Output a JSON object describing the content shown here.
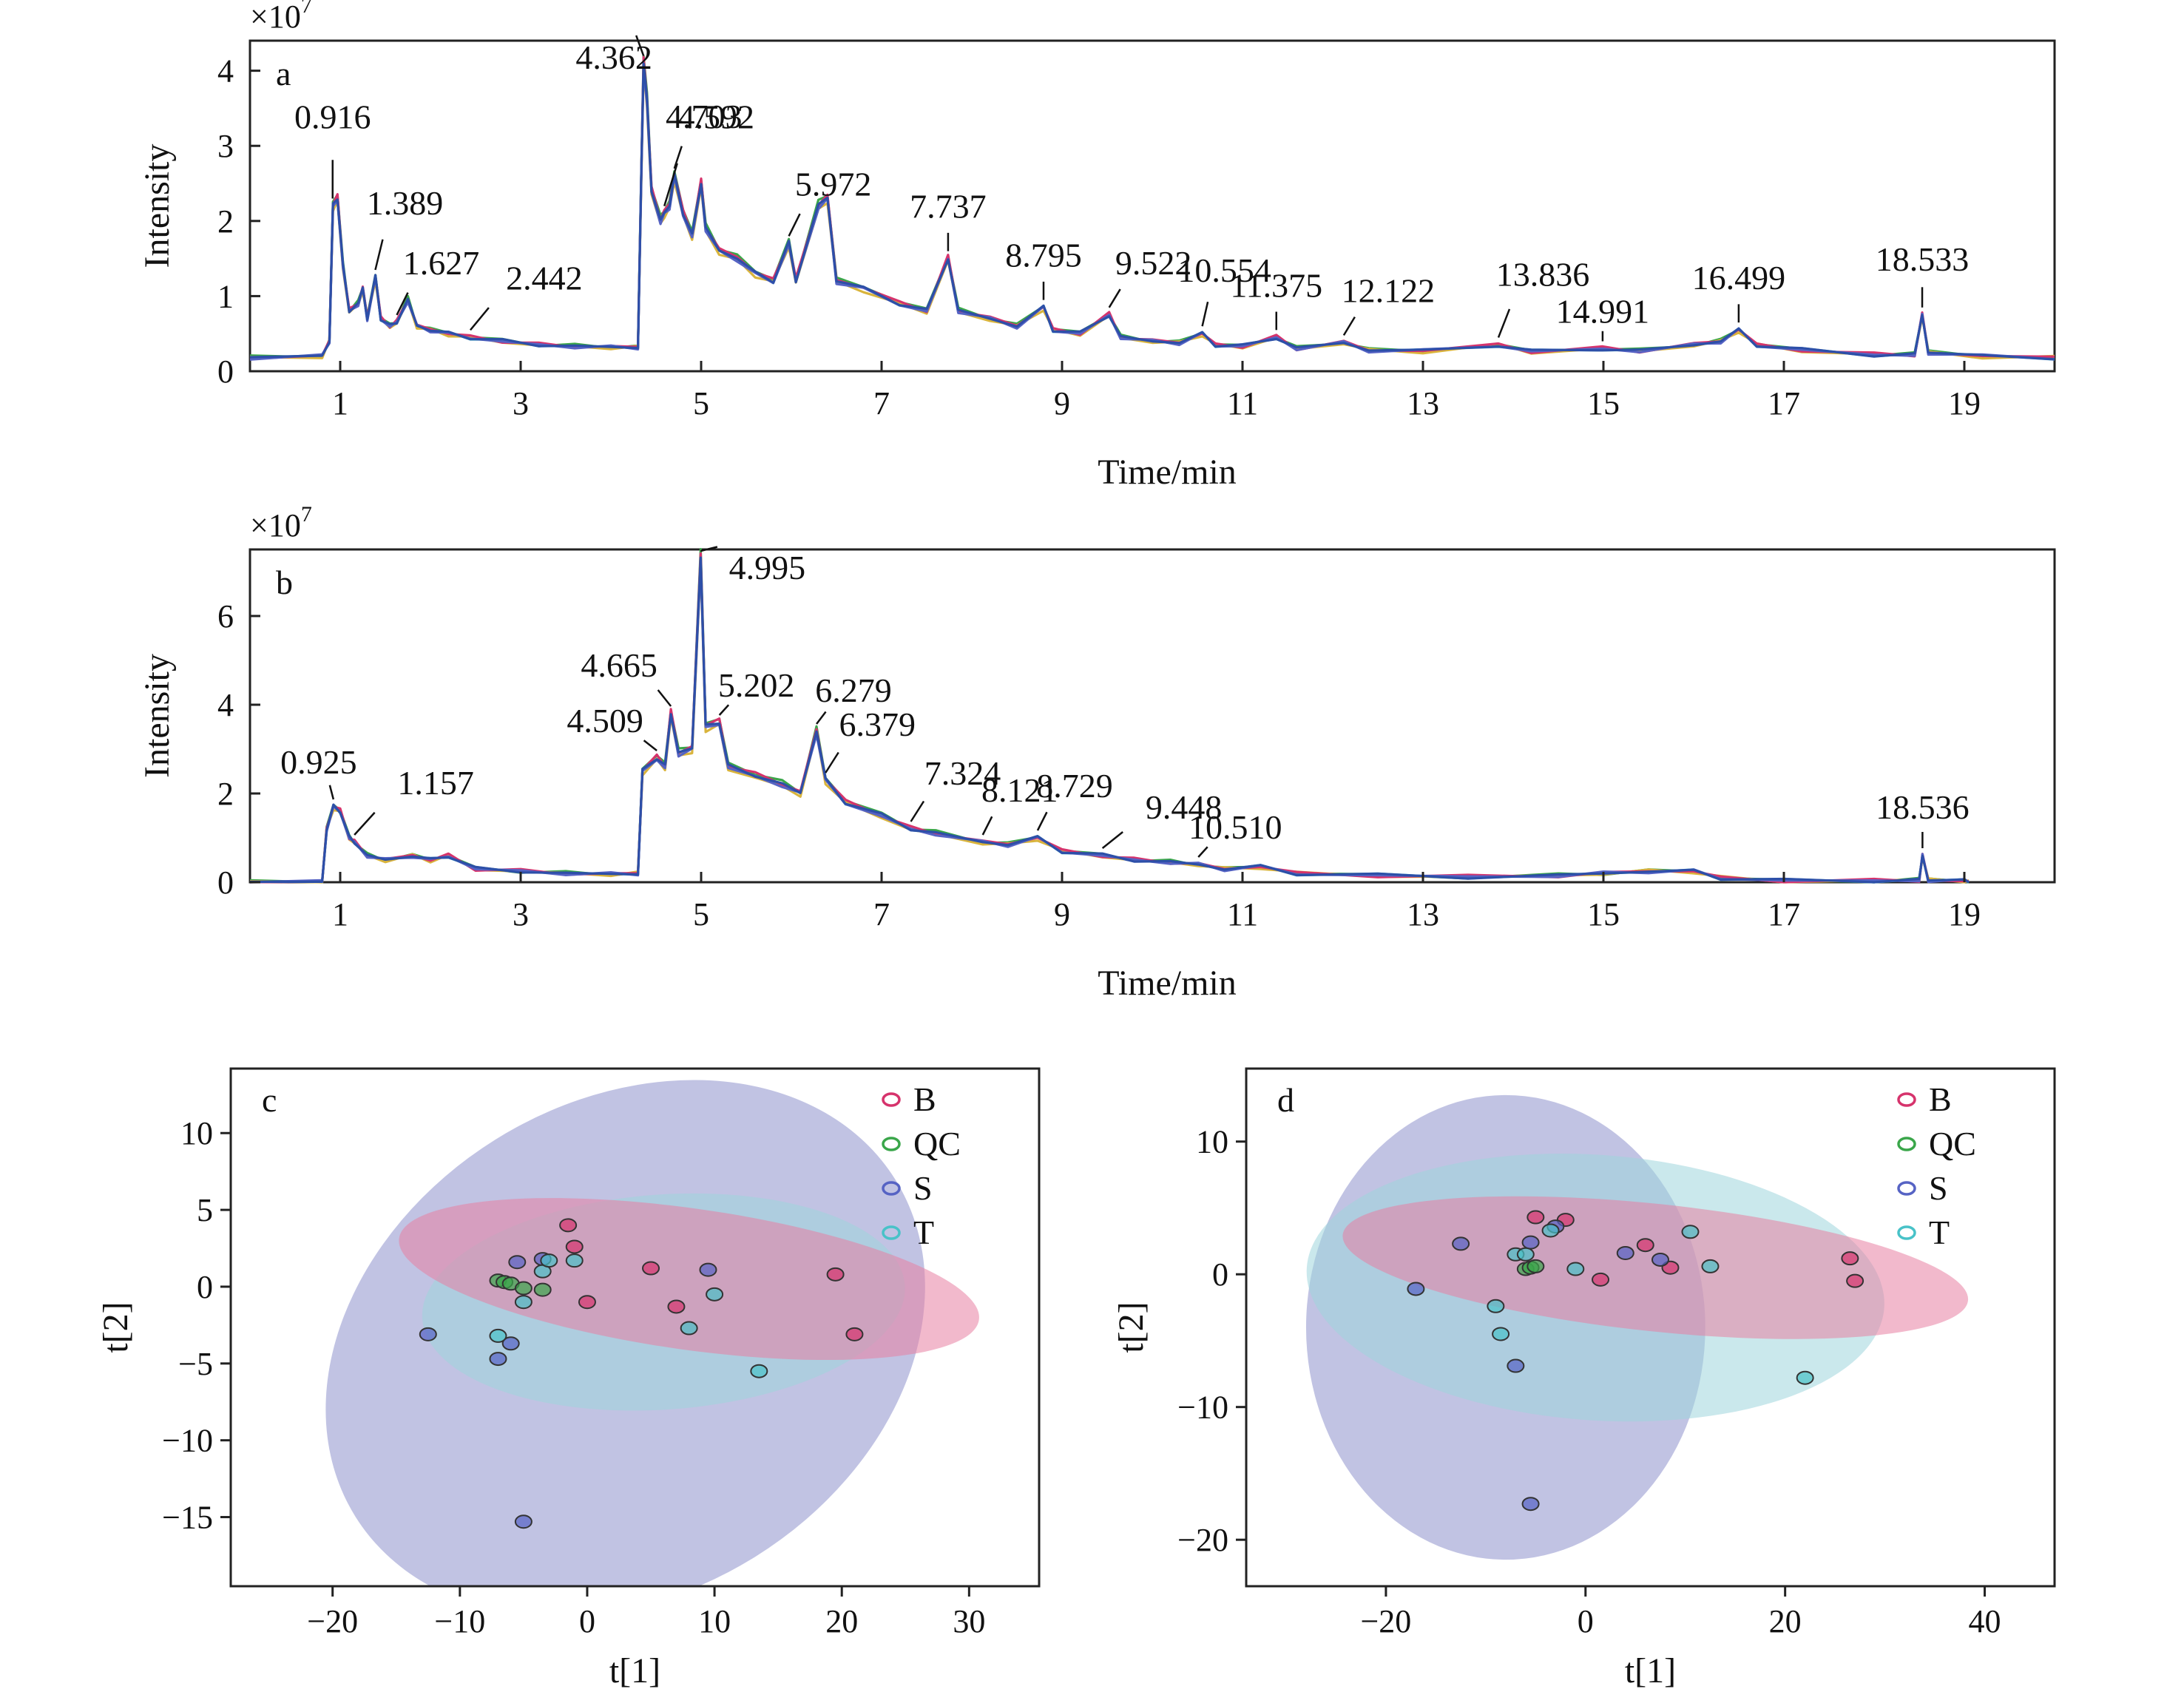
{
  "chart_data": [
    {
      "panel": "a",
      "type": "line",
      "multiplier": "×10",
      "multiplier_exp": "7",
      "xlabel": "Time/min",
      "ylabel": "Intensity",
      "xlim": [
        0,
        20
      ],
      "ylim": [
        0,
        4.4
      ],
      "xticks": [
        "1",
        "3",
        "5",
        "7",
        "9",
        "11",
        "13",
        "15",
        "17",
        "19"
      ],
      "yticks": [
        "0",
        "1",
        "2",
        "3",
        "4"
      ],
      "peaks": [
        {
          "t": 0.916,
          "label": "0.916"
        },
        {
          "t": 1.389,
          "label": "1.389"
        },
        {
          "t": 1.627,
          "label": "1.627"
        },
        {
          "t": 2.442,
          "label": "2.442"
        },
        {
          "t": 4.362,
          "label": "4.362"
        },
        {
          "t": 4.703,
          "label": "4.703"
        },
        {
          "t": 4.592,
          "label": "4.592"
        },
        {
          "t": 5.972,
          "label": "5.972"
        },
        {
          "t": 7.737,
          "label": "7.737"
        },
        {
          "t": 8.795,
          "label": "8.795"
        },
        {
          "t": 9.522,
          "label": "9.522"
        },
        {
          "t": 10.554,
          "label": "10.554"
        },
        {
          "t": 11.375,
          "label": "11.375"
        },
        {
          "t": 12.122,
          "label": "12.122"
        },
        {
          "t": 13.836,
          "label": "13.836"
        },
        {
          "t": 14.991,
          "label": "14.991"
        },
        {
          "t": 16.499,
          "label": "16.499"
        },
        {
          "t": 18.533,
          "label": "18.533"
        }
      ],
      "trace": [
        [
          0,
          0.18
        ],
        [
          0.8,
          0.2
        ],
        [
          0.88,
          0.4
        ],
        [
          0.92,
          2.2
        ],
        [
          0.97,
          2.3
        ],
        [
          1.03,
          1.4
        ],
        [
          1.1,
          0.8
        ],
        [
          1.2,
          0.9
        ],
        [
          1.25,
          1.1
        ],
        [
          1.3,
          0.7
        ],
        [
          1.39,
          1.25
        ],
        [
          1.45,
          0.7
        ],
        [
          1.55,
          0.6
        ],
        [
          1.627,
          0.65
        ],
        [
          1.75,
          0.95
        ],
        [
          1.85,
          0.6
        ],
        [
          2.0,
          0.55
        ],
        [
          2.2,
          0.5
        ],
        [
          2.442,
          0.45
        ],
        [
          2.8,
          0.4
        ],
        [
          3.2,
          0.35
        ],
        [
          3.6,
          0.33
        ],
        [
          4.0,
          0.32
        ],
        [
          4.3,
          0.32
        ],
        [
          4.34,
          2.8
        ],
        [
          4.362,
          4.1
        ],
        [
          4.4,
          3.6
        ],
        [
          4.45,
          2.4
        ],
        [
          4.55,
          2.0
        ],
        [
          4.592,
          2.1
        ],
        [
          4.65,
          2.2
        ],
        [
          4.703,
          2.6
        ],
        [
          4.8,
          2.1
        ],
        [
          4.9,
          1.8
        ],
        [
          5.0,
          2.5
        ],
        [
          5.05,
          1.9
        ],
        [
          5.2,
          1.6
        ],
        [
          5.4,
          1.5
        ],
        [
          5.6,
          1.3
        ],
        [
          5.8,
          1.2
        ],
        [
          5.972,
          1.7
        ],
        [
          6.05,
          1.2
        ],
        [
          6.3,
          2.2
        ],
        [
          6.4,
          2.3
        ],
        [
          6.5,
          1.2
        ],
        [
          6.8,
          1.1
        ],
        [
          7.2,
          0.9
        ],
        [
          7.5,
          0.8
        ],
        [
          7.737,
          1.5
        ],
        [
          7.85,
          0.8
        ],
        [
          8.2,
          0.7
        ],
        [
          8.5,
          0.6
        ],
        [
          8.795,
          0.85
        ],
        [
          8.9,
          0.55
        ],
        [
          9.2,
          0.5
        ],
        [
          9.522,
          0.75
        ],
        [
          9.65,
          0.45
        ],
        [
          10.0,
          0.4
        ],
        [
          10.3,
          0.38
        ],
        [
          10.554,
          0.5
        ],
        [
          10.7,
          0.35
        ],
        [
          11.0,
          0.33
        ],
        [
          11.375,
          0.45
        ],
        [
          11.6,
          0.3
        ],
        [
          12.122,
          0.38
        ],
        [
          12.4,
          0.28
        ],
        [
          13.0,
          0.27
        ],
        [
          13.836,
          0.35
        ],
        [
          14.2,
          0.26
        ],
        [
          14.991,
          0.3
        ],
        [
          15.4,
          0.27
        ],
        [
          16.0,
          0.35
        ],
        [
          16.3,
          0.4
        ],
        [
          16.499,
          0.55
        ],
        [
          16.7,
          0.35
        ],
        [
          17.2,
          0.28
        ],
        [
          18.0,
          0.22
        ],
        [
          18.45,
          0.22
        ],
        [
          18.533,
          0.75
        ],
        [
          18.6,
          0.25
        ],
        [
          19.2,
          0.2
        ],
        [
          20,
          0.18
        ]
      ]
    },
    {
      "panel": "b",
      "type": "line",
      "multiplier": "×10",
      "multiplier_exp": "7",
      "xlabel": "Time/min",
      "ylabel": "Intensity",
      "xlim": [
        0,
        20
      ],
      "ylim": [
        0,
        7.5
      ],
      "xticks": [
        "1",
        "3",
        "5",
        "7",
        "9",
        "11",
        "13",
        "15",
        "17",
        "19"
      ],
      "yticks": [
        "0",
        "2",
        "4",
        "6"
      ],
      "peaks": [
        {
          "t": 0.925,
          "label": "0.925"
        },
        {
          "t": 1.157,
          "label": "1.157"
        },
        {
          "t": 4.509,
          "label": "4.509"
        },
        {
          "t": 4.665,
          "label": "4.665"
        },
        {
          "t": 4.995,
          "label": "4.995"
        },
        {
          "t": 5.202,
          "label": "5.202"
        },
        {
          "t": 6.279,
          "label": "6.279"
        },
        {
          "t": 6.379,
          "label": "6.379"
        },
        {
          "t": 7.324,
          "label": "7.324"
        },
        {
          "t": 8.121,
          "label": "8.121"
        },
        {
          "t": 8.729,
          "label": "8.729"
        },
        {
          "t": 9.448,
          "label": "9.448"
        },
        {
          "t": 10.51,
          "label": "10.510"
        },
        {
          "t": 18.536,
          "label": "18.536"
        }
      ],
      "trace": [
        [
          0,
          0
        ],
        [
          0.8,
          0
        ],
        [
          0.85,
          1.2
        ],
        [
          0.925,
          1.7
        ],
        [
          1.0,
          1.6
        ],
        [
          1.1,
          1.0
        ],
        [
          1.157,
          0.9
        ],
        [
          1.3,
          0.6
        ],
        [
          1.5,
          0.5
        ],
        [
          1.8,
          0.6
        ],
        [
          2.0,
          0.5
        ],
        [
          2.2,
          0.6
        ],
        [
          2.5,
          0.3
        ],
        [
          3.0,
          0.25
        ],
        [
          3.5,
          0.2
        ],
        [
          4.0,
          0.18
        ],
        [
          4.3,
          0.2
        ],
        [
          4.35,
          2.5
        ],
        [
          4.509,
          2.8
        ],
        [
          4.6,
          2.6
        ],
        [
          4.665,
          3.8
        ],
        [
          4.75,
          2.9
        ],
        [
          4.9,
          3.0
        ],
        [
          4.995,
          7.3
        ],
        [
          5.05,
          3.5
        ],
        [
          5.202,
          3.6
        ],
        [
          5.3,
          2.6
        ],
        [
          5.6,
          2.4
        ],
        [
          5.9,
          2.2
        ],
        [
          6.1,
          2.0
        ],
        [
          6.279,
          3.4
        ],
        [
          6.379,
          2.3
        ],
        [
          6.6,
          1.8
        ],
        [
          7.0,
          1.5
        ],
        [
          7.324,
          1.2
        ],
        [
          7.6,
          1.1
        ],
        [
          8.121,
          0.9
        ],
        [
          8.4,
          0.85
        ],
        [
          8.729,
          1.0
        ],
        [
          9.0,
          0.7
        ],
        [
          9.448,
          0.6
        ],
        [
          9.8,
          0.5
        ],
        [
          10.2,
          0.45
        ],
        [
          10.51,
          0.4
        ],
        [
          10.8,
          0.3
        ],
        [
          11.2,
          0.35
        ],
        [
          11.6,
          0.2
        ],
        [
          12.5,
          0.15
        ],
        [
          13.5,
          0.12
        ],
        [
          14.5,
          0.15
        ],
        [
          15.0,
          0.2
        ],
        [
          15.5,
          0.25
        ],
        [
          16.0,
          0.25
        ],
        [
          16.3,
          0.1
        ],
        [
          17.0,
          0.03
        ],
        [
          18.0,
          0.03
        ],
        [
          18.5,
          0.05
        ],
        [
          18.536,
          0.6
        ],
        [
          18.6,
          0.05
        ],
        [
          19.0,
          0.03
        ],
        [
          19.05,
          0
        ]
      ]
    },
    {
      "panel": "c",
      "type": "scatter",
      "xlabel": "t[1]",
      "ylabel": "t[2]",
      "xlim": [
        -28,
        35.5
      ],
      "ylim": [
        -19.5,
        14.2
      ],
      "xticks": [
        "−20",
        "−10",
        "0",
        "10",
        "20",
        "30"
      ],
      "xtick_values": [
        -20,
        -10,
        0,
        10,
        20,
        30
      ],
      "yticks": [
        "10",
        "5",
        "0",
        "−5",
        "−10",
        "−15"
      ],
      "ytick_values": [
        10,
        5,
        0,
        -5,
        -10,
        -15
      ],
      "legend": [
        "B",
        "QC",
        "S",
        "T"
      ],
      "colors": {
        "B": "#d6336c",
        "QC": "#3aa64a",
        "S": "#5663c4",
        "T": "#48c2c8"
      },
      "ellipses": [
        {
          "group": "S",
          "cx": 3,
          "cy": -4,
          "rx": 25,
          "ry": 16,
          "angle": 32,
          "fill": "#8e91cc"
        },
        {
          "group": "T",
          "cx": 6,
          "cy": -1,
          "rx": 19,
          "ry": 7,
          "angle": 4,
          "fill": "#9fd6dc"
        },
        {
          "group": "B",
          "cx": 8,
          "cy": 0.5,
          "rx": 23,
          "ry": 4.6,
          "angle": -8,
          "fill": "#e87fa3"
        }
      ],
      "points": [
        {
          "g": "B",
          "x": -1.5,
          "y": 4
        },
        {
          "g": "B",
          "x": -1,
          "y": 2.6
        },
        {
          "g": "B",
          "x": 0,
          "y": -1
        },
        {
          "g": "B",
          "x": 5,
          "y": 1.2
        },
        {
          "g": "B",
          "x": 7,
          "y": -1.3
        },
        {
          "g": "B",
          "x": 19.5,
          "y": 0.8
        },
        {
          "g": "B",
          "x": 21,
          "y": -3.1
        },
        {
          "g": "QC",
          "x": -7,
          "y": 0.4
        },
        {
          "g": "QC",
          "x": -6.5,
          "y": 0.3
        },
        {
          "g": "QC",
          "x": -6,
          "y": 0.2
        },
        {
          "g": "QC",
          "x": -5,
          "y": -0.1
        },
        {
          "g": "QC",
          "x": -3.5,
          "y": -0.2
        },
        {
          "g": "S",
          "x": -12.5,
          "y": -3.1
        },
        {
          "g": "S",
          "x": -7,
          "y": -4.7
        },
        {
          "g": "S",
          "x": -6,
          "y": -3.7
        },
        {
          "g": "S",
          "x": -5.5,
          "y": 1.6
        },
        {
          "g": "S",
          "x": -5,
          "y": -15.3
        },
        {
          "g": "S",
          "x": -3.5,
          "y": 1.8
        },
        {
          "g": "S",
          "x": 9.5,
          "y": 1.1
        },
        {
          "g": "T",
          "x": -7,
          "y": -3.2
        },
        {
          "g": "T",
          "x": -5,
          "y": -1
        },
        {
          "g": "T",
          "x": -3.5,
          "y": 1
        },
        {
          "g": "T",
          "x": -3,
          "y": 1.7
        },
        {
          "g": "T",
          "x": -1,
          "y": 1.7
        },
        {
          "g": "T",
          "x": 8,
          "y": -2.7
        },
        {
          "g": "T",
          "x": 10,
          "y": -0.5
        },
        {
          "g": "T",
          "x": 13.5,
          "y": -5.5
        }
      ]
    },
    {
      "panel": "d",
      "type": "scatter",
      "xlabel": "t[1]",
      "ylabel": "t[2]",
      "xlim": [
        -34,
        47
      ],
      "ylim": [
        -23.5,
        15.5
      ],
      "xticks": [
        "−20",
        "0",
        "20",
        "40"
      ],
      "xtick_values": [
        -20,
        0,
        20,
        40
      ],
      "yticks": [
        "10",
        "0",
        "−10",
        "−20"
      ],
      "ytick_values": [
        10,
        0,
        -10,
        -20
      ],
      "legend": [
        "B",
        "QC",
        "S",
        "T"
      ],
      "colors": {
        "B": "#d6336c",
        "QC": "#3aa64a",
        "S": "#5663c4",
        "T": "#48c2c8"
      },
      "ellipses": [
        {
          "group": "S",
          "cx": -8,
          "cy": -4,
          "rx": 20,
          "ry": 17.5,
          "angle": 0,
          "fill": "#8e91cc"
        },
        {
          "group": "T",
          "cx": 1,
          "cy": -1,
          "rx": 29,
          "ry": 10,
          "angle": -4,
          "fill": "#9fd6dc"
        },
        {
          "group": "B",
          "cx": 7,
          "cy": 0.5,
          "rx": 31.5,
          "ry": 4.8,
          "angle": -6,
          "fill": "#e87fa3"
        }
      ],
      "points": [
        {
          "g": "B",
          "x": -5,
          "y": 4.3
        },
        {
          "g": "B",
          "x": -2,
          "y": 4.1
        },
        {
          "g": "B",
          "x": 1.5,
          "y": -0.4
        },
        {
          "g": "B",
          "x": 6,
          "y": 2.2
        },
        {
          "g": "B",
          "x": 8.5,
          "y": 0.5
        },
        {
          "g": "B",
          "x": 26.5,
          "y": 1.2
        },
        {
          "g": "B",
          "x": 27,
          "y": -0.5
        },
        {
          "g": "QC",
          "x": -6,
          "y": 0.4
        },
        {
          "g": "QC",
          "x": -5.5,
          "y": 0.5
        },
        {
          "g": "QC",
          "x": -5,
          "y": 0.6
        },
        {
          "g": "S",
          "x": -17,
          "y": -1.1
        },
        {
          "g": "S",
          "x": -12.5,
          "y": 2.3
        },
        {
          "g": "S",
          "x": -7,
          "y": -6.9
        },
        {
          "g": "S",
          "x": -5.5,
          "y": 2.4
        },
        {
          "g": "S",
          "x": -5.5,
          "y": -17.3
        },
        {
          "g": "S",
          "x": -3,
          "y": 3.6
        },
        {
          "g": "S",
          "x": 4,
          "y": 1.6
        },
        {
          "g": "S",
          "x": 7.5,
          "y": 1.1
        },
        {
          "g": "T",
          "x": -9,
          "y": -2.4
        },
        {
          "g": "T",
          "x": -8.5,
          "y": -4.5
        },
        {
          "g": "T",
          "x": -7,
          "y": 1.5
        },
        {
          "g": "T",
          "x": -6,
          "y": 1.5
        },
        {
          "g": "T",
          "x": -3.5,
          "y": 3.3
        },
        {
          "g": "T",
          "x": -1,
          "y": 0.4
        },
        {
          "g": "T",
          "x": 10.5,
          "y": 3.2
        },
        {
          "g": "T",
          "x": 12.5,
          "y": 0.6
        },
        {
          "g": "T",
          "x": 22,
          "y": -7.8
        }
      ]
    }
  ]
}
